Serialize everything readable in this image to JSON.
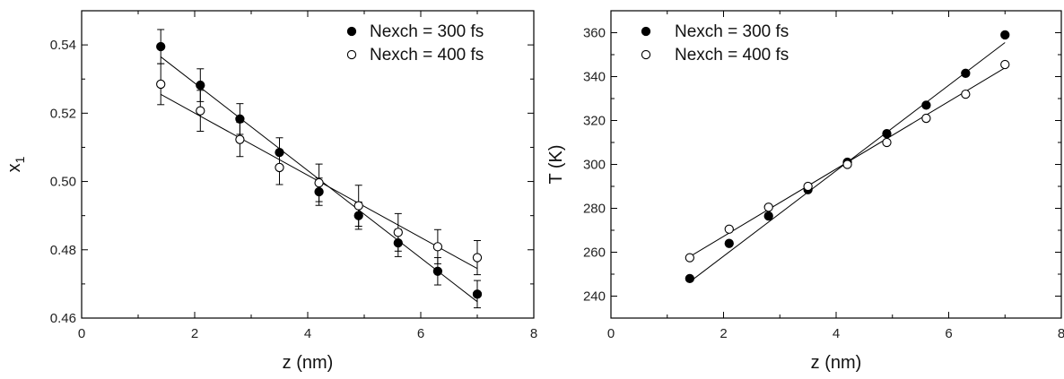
{
  "chart_data": [
    {
      "type": "scatter",
      "title": "",
      "xlabel": "z (nm)",
      "ylabel": "x",
      "ylabel_subscript": "1",
      "xlim": [
        0,
        8
      ],
      "ylim": [
        0.46,
        0.55
      ],
      "xticks": [
        0,
        2,
        4,
        6,
        8
      ],
      "yticks": [
        0.46,
        0.48,
        0.5,
        0.52,
        0.54
      ],
      "ytick_labels": [
        "0.46",
        "0.48",
        "0.50",
        "0.52",
        "0.54"
      ],
      "grid": false,
      "legend_position": "top-right",
      "error_bars": true,
      "fit_lines": "linear",
      "series": [
        {
          "name": "Nexch = 300 fs",
          "marker": "filled-circle",
          "x": [
            1.4,
            2.1,
            2.8,
            3.5,
            4.2,
            4.9,
            5.6,
            6.3,
            7.0
          ],
          "y": [
            0.5395,
            0.5282,
            0.5183,
            0.5085,
            0.497,
            0.49,
            0.482,
            0.4737,
            0.467
          ],
          "error": [
            0.005,
            0.0048,
            0.0045,
            0.0043,
            0.004,
            0.004,
            0.004,
            0.004,
            0.004
          ],
          "fit": [
            [
              1.4,
              0.5365
            ],
            [
              7.0,
              0.4648
            ]
          ]
        },
        {
          "name": "Nexch = 400 fs",
          "marker": "open-circle",
          "x": [
            1.4,
            2.1,
            2.8,
            3.5,
            4.2,
            4.9,
            5.6,
            6.3,
            7.0
          ],
          "y": [
            0.5285,
            0.5207,
            0.5123,
            0.5041,
            0.4996,
            0.4929,
            0.4851,
            0.4809,
            0.4777
          ],
          "error": [
            0.006,
            0.006,
            0.005,
            0.005,
            0.0055,
            0.006,
            0.0055,
            0.005,
            0.005
          ],
          "fit": [
            [
              1.4,
              0.5255
            ],
            [
              7.0,
              0.4745
            ]
          ]
        }
      ]
    },
    {
      "type": "scatter",
      "title": "",
      "xlabel": "z (nm)",
      "ylabel": "T (K)",
      "xlim": [
        0,
        8
      ],
      "ylim": [
        230,
        370
      ],
      "xticks": [
        0,
        2,
        4,
        6,
        8
      ],
      "yticks": [
        240,
        260,
        280,
        300,
        320,
        340,
        360
      ],
      "ytick_labels": [
        "240",
        "260",
        "280",
        "300",
        "320",
        "340",
        "360"
      ],
      "grid": false,
      "legend_position": "top-left",
      "error_bars": false,
      "fit_lines": "linear",
      "series": [
        {
          "name": "Nexch = 300 fs",
          "marker": "filled-circle",
          "x": [
            1.4,
            2.1,
            2.8,
            3.5,
            4.2,
            4.9,
            5.6,
            6.3,
            7.0
          ],
          "y": [
            248,
            264,
            276.5,
            288.5,
            301,
            314,
            327,
            341.5,
            359
          ],
          "fit": [
            [
              1.4,
              246.5
            ],
            [
              7.0,
              355.5
            ]
          ]
        },
        {
          "name": "Nexch = 400 fs",
          "marker": "open-circle",
          "x": [
            1.4,
            2.1,
            2.8,
            3.5,
            4.2,
            4.9,
            5.6,
            6.3,
            7.0
          ],
          "y": [
            257.5,
            270.5,
            280.5,
            290,
            300,
            310,
            321,
            332,
            345.5
          ],
          "fit": [
            [
              1.4,
              258
            ],
            [
              7.0,
              344
            ]
          ]
        }
      ]
    }
  ]
}
